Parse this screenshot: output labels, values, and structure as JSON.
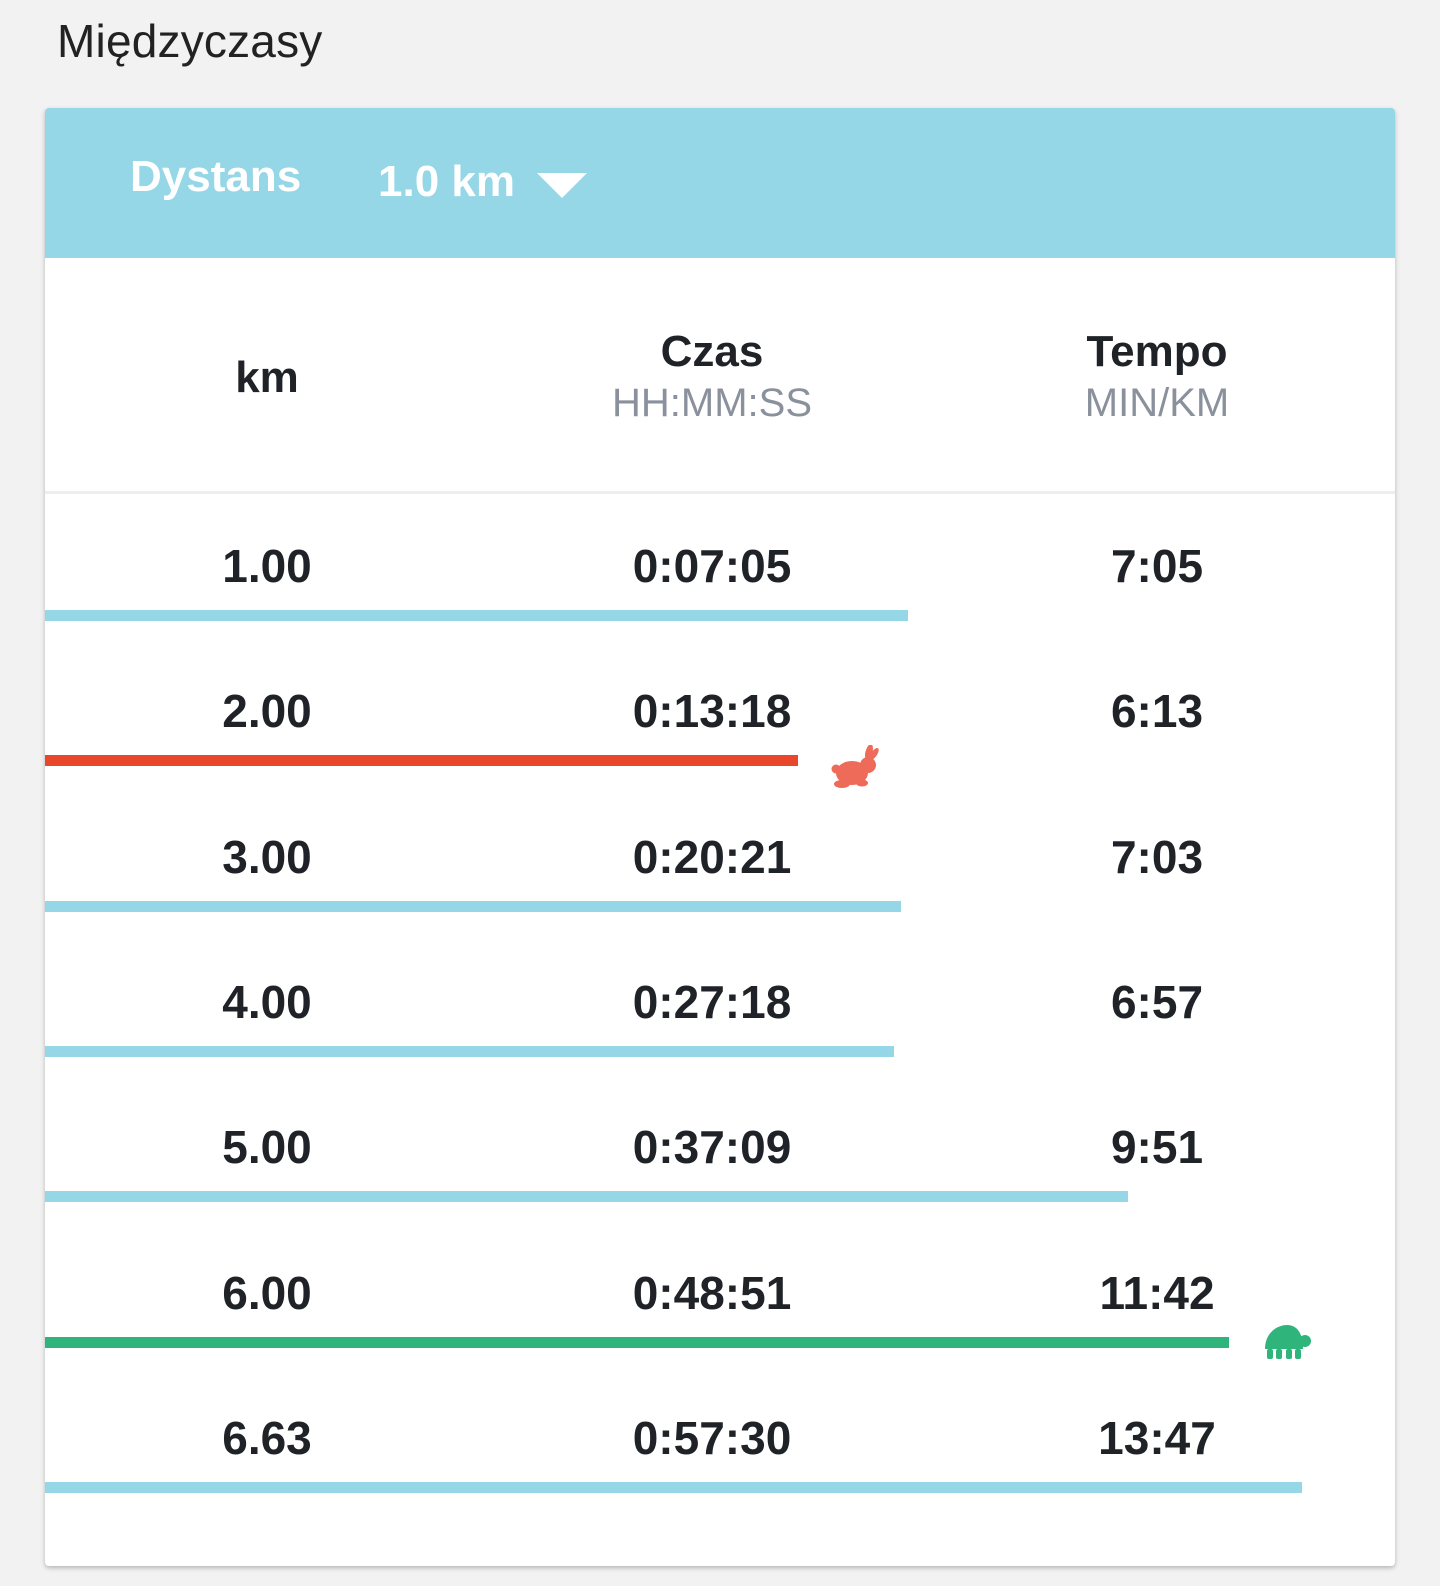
{
  "section": {
    "title": "Międzyczasy"
  },
  "header": {
    "distance_label": "Dystans",
    "distance_value": "1.0 km"
  },
  "columns": {
    "km": {
      "title": "km"
    },
    "time": {
      "title": "Czas",
      "unit": "HH:MM:SS"
    },
    "pace": {
      "title": "Tempo",
      "unit": "MIN/KM"
    }
  },
  "splits": [
    {
      "km": "1.00",
      "time": "0:07:05",
      "pace": "7:05",
      "bar_fraction": 0.639,
      "marker": "none"
    },
    {
      "km": "2.00",
      "time": "0:13:18",
      "pace": "6:13",
      "bar_fraction": 0.558,
      "marker": "fastest"
    },
    {
      "km": "3.00",
      "time": "0:20:21",
      "pace": "7:03",
      "bar_fraction": 0.634,
      "marker": "none"
    },
    {
      "km": "4.00",
      "time": "0:27:18",
      "pace": "6:57",
      "bar_fraction": 0.629,
      "marker": "none"
    },
    {
      "km": "5.00",
      "time": "0:37:09",
      "pace": "9:51",
      "bar_fraction": 0.802,
      "marker": "none"
    },
    {
      "km": "6.00",
      "time": "0:48:51",
      "pace": "11:42",
      "bar_fraction": 0.877,
      "marker": "slowest"
    },
    {
      "km": "6.63",
      "time": "0:57:30",
      "pace": "13:47",
      "bar_fraction": 0.931,
      "marker": "none"
    }
  ],
  "icons": {
    "fastest": "rabbit-icon",
    "slowest": "turtle-icon"
  },
  "colors": {
    "header_bg": "#95d7e6",
    "bar_normal": "#95d7e6",
    "bar_fastest": "#e8472b",
    "bar_slowest": "#2fb57b",
    "rabbit_icon": "#ee6b5a",
    "turtle_icon": "#2fb57b"
  }
}
